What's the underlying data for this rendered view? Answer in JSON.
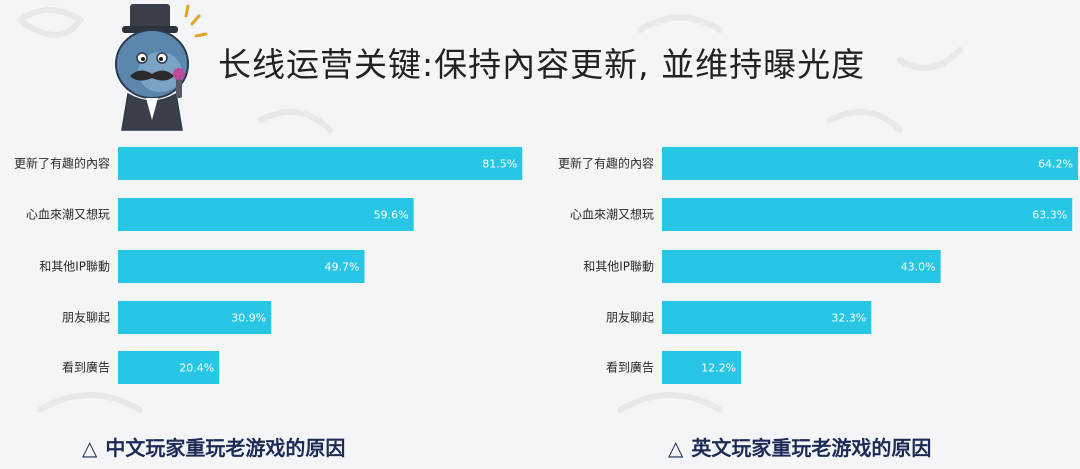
{
  "page": {
    "title": "长线运营关键:保持內容更新, 並维持曝光度",
    "bar_color": "#26c6e4"
  },
  "chart_data": [
    {
      "type": "bar",
      "orientation": "horizontal",
      "caption": "中文玩家重玩老游戏的原因",
      "categories": [
        "更新了有趣的內容",
        "心血來潮又想玩",
        "和其他IP聯動",
        "朋友聊起",
        "看到廣告"
      ],
      "values": [
        81.5,
        59.6,
        49.7,
        30.9,
        20.4
      ],
      "value_labels": [
        "81.5%",
        "59.6%",
        "49.7%",
        "30.9%",
        "20.4%"
      ],
      "xlim": [
        0,
        100
      ],
      "grid": false,
      "legend": false
    },
    {
      "type": "bar",
      "orientation": "horizontal",
      "caption": "英文玩家重玩老游戏的原因",
      "categories": [
        "更新了有趣的內容",
        "心血來潮又想玩",
        "和其他IP聯動",
        "朋友聊起",
        "看到廣告"
      ],
      "values": [
        64.2,
        63.3,
        43.0,
        32.3,
        12.2
      ],
      "value_labels": [
        "64.2%",
        "63.3%",
        "43.0%",
        "32.3%",
        "12.2%"
      ],
      "xlim": [
        0,
        100
      ],
      "grid": false,
      "legend": false
    }
  ]
}
